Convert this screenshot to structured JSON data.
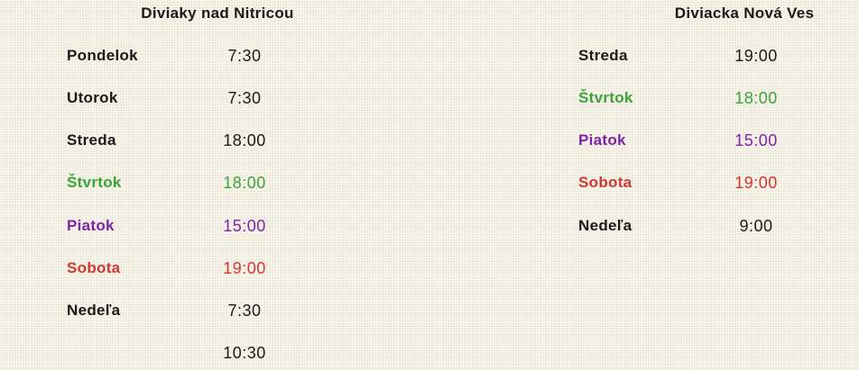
{
  "page": {
    "background_color": "#f2efe2",
    "palette": {
      "default_text": "#1a1a1a",
      "green": "#3ba439",
      "purple": "#7f23a6",
      "red": "#d13732"
    }
  },
  "tables": [
    {
      "title": "Diviaky nad Nitricou",
      "rows": [
        {
          "day": "Pondelok",
          "time": "7:30",
          "color": "#1a1a1a"
        },
        {
          "day": "Utorok",
          "time": "7:30",
          "color": "#1a1a1a"
        },
        {
          "day": "Streda",
          "time": "18:00",
          "color": "#1a1a1a"
        },
        {
          "day": "Štvrtok",
          "time": "18:00",
          "color": "#3ba439"
        },
        {
          "day": "Piatok",
          "time": "15:00",
          "color": "#7f23a6"
        },
        {
          "day": "Sobota",
          "time": "19:00",
          "color": "#d13732"
        },
        {
          "day": "Nedeľa",
          "time": "7:30",
          "color": "#1a1a1a"
        },
        {
          "day": "",
          "time": "10:30",
          "color": "#1a1a1a"
        }
      ]
    },
    {
      "title": "Diviacka Nová Ves",
      "rows": [
        {
          "day": "Streda",
          "time": "19:00",
          "color": "#1a1a1a"
        },
        {
          "day": "Štvrtok",
          "time": "18:00",
          "color": "#3ba439"
        },
        {
          "day": "Piatok",
          "time": "15:00",
          "color": "#7f23a6"
        },
        {
          "day": "Sobota",
          "time": "19:00",
          "color": "#d13732"
        },
        {
          "day": "Nedeľa",
          "time": "9:00",
          "color": "#1a1a1a"
        }
      ]
    }
  ]
}
